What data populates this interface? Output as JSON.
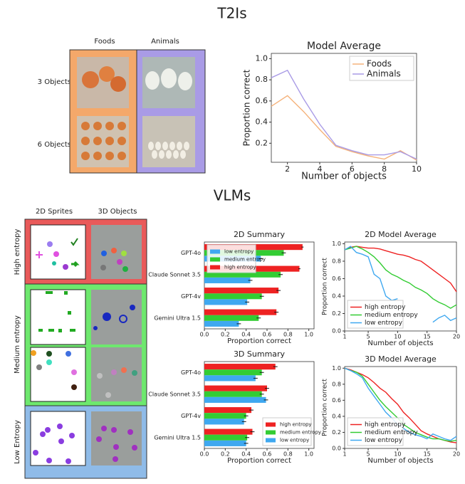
{
  "figure": {
    "t2i_heading": "T2Is",
    "vlm_heading": "VLMs",
    "t2i_columns": [
      "Foods",
      "Animals"
    ],
    "t2i_rows": [
      "3 Objects",
      "6 Objects"
    ],
    "vlm_columns": [
      "2D Sprites",
      "3D Objects"
    ],
    "vlm_rows": [
      "High entropy",
      "Medium entropy",
      "Low Entropy"
    ]
  },
  "chart_data": [
    {
      "type": "line",
      "title": "Model Average",
      "x_label": "Number of objects",
      "y_label": "Proportion correct",
      "x": [
        1,
        2,
        3,
        4,
        5,
        6,
        7,
        8,
        9,
        10
      ],
      "xlim": [
        1,
        10
      ],
      "xticks": [
        2,
        4,
        6,
        8,
        10
      ],
      "ylim": [
        0.02,
        1.05
      ],
      "yticks": [
        0.2,
        0.4,
        0.6,
        0.8,
        {
          "value": 1,
          "label": "1.0"
        }
      ],
      "legend": "upper right",
      "series": [
        {
          "name": "Foods",
          "color": "#f5b27a",
          "values": [
            0.55,
            0.65,
            0.5,
            0.33,
            0.17,
            0.12,
            0.08,
            0.05,
            0.13,
            0.04
          ]
        },
        {
          "name": "Animals",
          "color": "#a99be6",
          "values": [
            0.82,
            0.89,
            0.62,
            0.38,
            0.18,
            0.13,
            0.09,
            0.09,
            0.12,
            0.05
          ]
        }
      ]
    },
    {
      "type": "hbar",
      "title": "2D Summary",
      "x_label": "Proportion correct",
      "categories": [
        "GPT-4o",
        "Claude Sonnet 3.5",
        "GPT-4v",
        "Gemini Ultra 1.5"
      ],
      "xlim": [
        0,
        1.05
      ],
      "xticks": [
        {
          "value": 0,
          "label": "0.0"
        },
        0.2,
        0.4,
        0.6,
        0.8,
        {
          "value": 1,
          "label": "1.0"
        }
      ],
      "legend": "upper left",
      "series": [
        {
          "name": "low entropy",
          "color": "#3fa8f0",
          "values": [
            0.54,
            0.44,
            0.41,
            0.33
          ],
          "errors": [
            0.02,
            0.02,
            0.02,
            0.02
          ]
        },
        {
          "name": "medium entropy",
          "color": "#33cc33",
          "values": [
            0.76,
            0.73,
            0.55,
            0.52
          ],
          "errors": [
            0.02,
            0.02,
            0.02,
            0.02
          ]
        },
        {
          "name": "high entropy",
          "color": "#ee2222",
          "values": [
            0.94,
            0.91,
            0.71,
            0.69
          ],
          "errors": [
            0.01,
            0.01,
            0.02,
            0.02
          ]
        }
      ]
    },
    {
      "type": "line",
      "title": "2D Model Average",
      "x_label": "Number of objects",
      "y_label": "Proportion correct",
      "x": [
        1,
        2,
        3,
        4,
        5,
        6,
        7,
        8,
        9,
        10,
        11,
        12,
        13,
        14,
        15,
        16,
        17,
        18,
        19,
        20
      ],
      "xlim": [
        1,
        20
      ],
      "xticks": [
        1,
        5,
        10,
        15,
        20
      ],
      "ylim": [
        0,
        1.02
      ],
      "yticks": [
        {
          "value": 0,
          "label": "0.0"
        },
        0.2,
        0.4,
        0.6,
        0.8,
        {
          "value": 1,
          "label": "1.0"
        }
      ],
      "legend": "lower left",
      "series": [
        {
          "name": "high entropy",
          "color": "#ee2222",
          "values": [
            0.93,
            0.96,
            0.97,
            0.96,
            0.95,
            0.95,
            0.94,
            0.92,
            0.9,
            0.88,
            0.87,
            0.85,
            0.82,
            0.8,
            0.75,
            0.7,
            0.65,
            0.6,
            0.55,
            0.45
          ]
        },
        {
          "name": "medium entropy",
          "color": "#33cc33",
          "values": [
            0.93,
            0.95,
            0.97,
            0.94,
            0.9,
            0.85,
            0.78,
            0.7,
            0.65,
            0.62,
            0.58,
            0.55,
            0.5,
            0.47,
            0.43,
            0.37,
            0.33,
            0.3,
            0.26,
            0.3
          ]
        },
        {
          "name": "low entropy",
          "color": "#3fa8f0",
          "values": [
            0.93,
            0.97,
            0.9,
            0.88,
            0.85,
            0.65,
            0.6,
            0.4,
            0.35,
            0.37,
            null,
            null,
            null,
            null,
            null,
            0.1,
            0.15,
            0.18,
            0.12,
            0.15
          ]
        }
      ]
    },
    {
      "type": "hbar",
      "title": "3D Summary",
      "x_label": "Proportion correct",
      "categories": [
        "GPT-4o",
        "Claude Sonnet 3.5",
        "GPT-4v",
        "Gemini Ultra 1.5"
      ],
      "xlim": [
        0,
        1.05
      ],
      "xticks": [
        {
          "value": 0,
          "label": "0.0"
        },
        0.2,
        0.4,
        0.6,
        0.8,
        {
          "value": 1,
          "label": "1.0"
        }
      ],
      "legend": "lower right",
      "series": [
        {
          "name": "high entropy",
          "color": "#ee2222",
          "values": [
            0.68,
            0.6,
            0.45,
            0.46
          ],
          "errors": [
            0.02,
            0.02,
            0.02,
            0.02
          ]
        },
        {
          "name": "medium entropy",
          "color": "#33cc33",
          "values": [
            0.55,
            0.55,
            0.4,
            0.41
          ],
          "errors": [
            0.02,
            0.02,
            0.02,
            0.02
          ]
        },
        {
          "name": "low entropy",
          "color": "#3fa8f0",
          "values": [
            0.49,
            0.59,
            0.38,
            0.4
          ],
          "errors": [
            0.02,
            0.02,
            0.02,
            0.02
          ]
        }
      ]
    },
    {
      "type": "line",
      "title": "3D Model Average",
      "x_label": "Number of objects",
      "y_label": "Proportion correct",
      "x": [
        1,
        2,
        3,
        4,
        5,
        6,
        7,
        8,
        9,
        10,
        11,
        12,
        13,
        14,
        15,
        16,
        17,
        18,
        19,
        20
      ],
      "xlim": [
        1,
        20
      ],
      "xticks": [
        1,
        5,
        10,
        15,
        20
      ],
      "ylim": [
        0,
        1.02
      ],
      "yticks": [
        {
          "value": 0,
          "label": "0.0"
        },
        0.2,
        0.4,
        0.6,
        0.8,
        {
          "value": 1,
          "label": "1.0"
        }
      ],
      "legend": "lower left",
      "series": [
        {
          "name": "high entropy",
          "color": "#ee2222",
          "values": [
            1.0,
            0.98,
            0.95,
            0.92,
            0.88,
            0.82,
            0.75,
            0.7,
            0.62,
            0.55,
            0.45,
            0.38,
            0.3,
            0.22,
            0.18,
            0.15,
            0.12,
            0.1,
            0.08,
            0.07
          ]
        },
        {
          "name": "medium entropy",
          "color": "#33cc33",
          "values": [
            1.0,
            0.97,
            0.95,
            0.9,
            0.8,
            0.7,
            0.6,
            0.52,
            0.45,
            0.38,
            0.3,
            0.25,
            0.2,
            0.17,
            0.14,
            0.12,
            0.12,
            0.1,
            0.09,
            0.1
          ]
        },
        {
          "name": "low entropy",
          "color": "#3fa8f0",
          "values": [
            1.0,
            0.97,
            0.93,
            0.88,
            0.75,
            0.65,
            0.55,
            0.45,
            0.38,
            0.3,
            0.25,
            0.2,
            0.17,
            0.15,
            0.12,
            0.18,
            0.15,
            0.12,
            0.1,
            0.15
          ]
        }
      ]
    }
  ]
}
